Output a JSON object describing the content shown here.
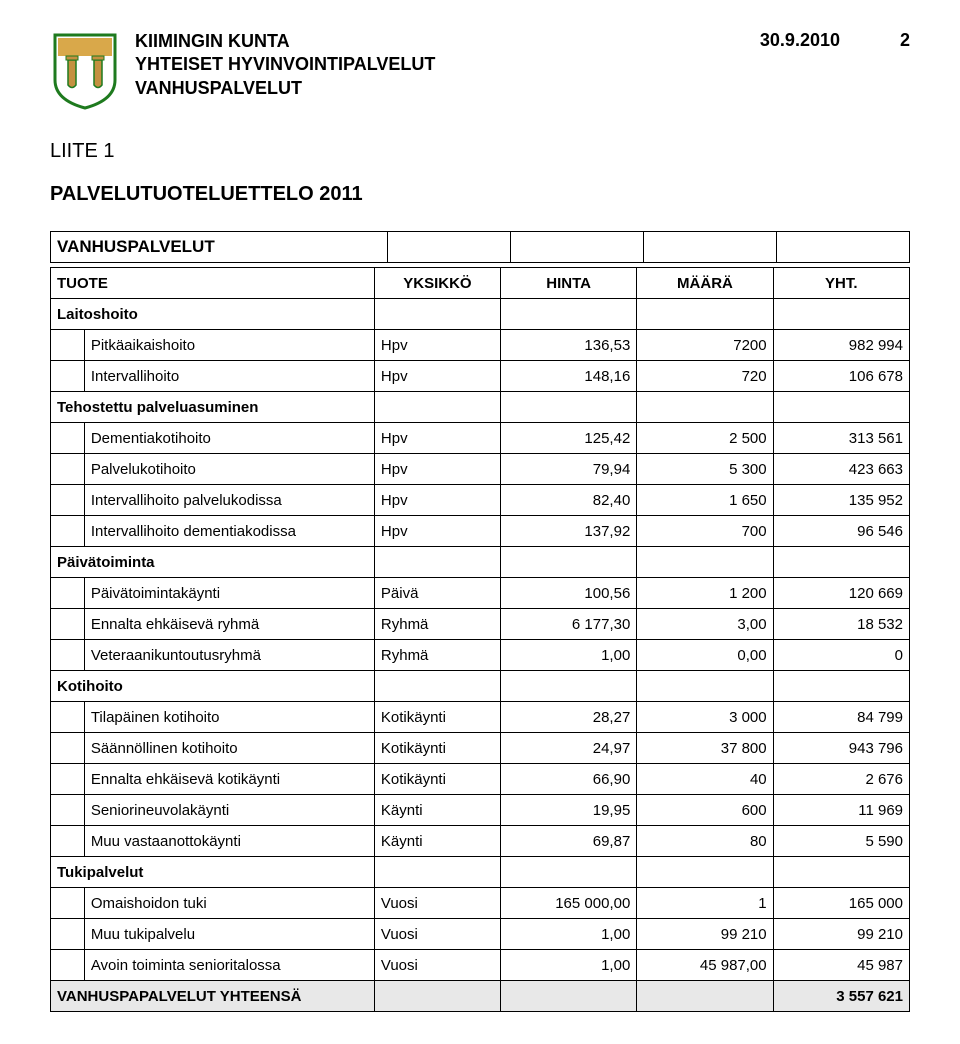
{
  "header": {
    "org_line1": "KIIMINGIN KUNTA",
    "org_line2": "YHTEISET HYVINVOINTIPALVELUT",
    "org_line3": "VANHUSPALVELUT",
    "date": "30.9.2010",
    "page": "2"
  },
  "logo": {
    "shield_fill": "#ffffff",
    "shield_stroke": "#1e7a1e",
    "top_fill": "#d9a84a",
    "bell_fill": "#c49040"
  },
  "appendix": "LIITE 1",
  "title": "PALVELUTUOTELUETTELO 2011",
  "table": {
    "header": {
      "col2": "TUOTE",
      "col3": "YKSIKKÖ",
      "col4": "HINTA",
      "col5": "MÄÄRÄ",
      "col6": "YHT."
    },
    "section_title": "VANHUSPALVELUT",
    "groups": [
      {
        "label": "Laitoshoito",
        "rows": [
          {
            "name": "Pitkäaikaishoito",
            "unit": "Hpv",
            "price": "136,53",
            "qty": "7200",
            "total": "982 994"
          },
          {
            "name": "Intervallihoito",
            "unit": "Hpv",
            "price": "148,16",
            "qty": "720",
            "total": "106 678"
          }
        ]
      },
      {
        "label": "Tehostettu palveluasuminen",
        "rows": [
          {
            "name": "Dementiakotihoito",
            "unit": "Hpv",
            "price": "125,42",
            "qty": "2 500",
            "total": "313 561"
          },
          {
            "name": "Palvelukotihoito",
            "unit": "Hpv",
            "price": "79,94",
            "qty": "5 300",
            "total": "423 663"
          },
          {
            "name": "Intervallihoito palvelukodissa",
            "unit": "Hpv",
            "price": "82,40",
            "qty": "1 650",
            "total": "135 952"
          },
          {
            "name": "Intervallihoito dementiakodissa",
            "unit": "Hpv",
            "price": "137,92",
            "qty": "700",
            "total": "96 546"
          }
        ]
      },
      {
        "label": "Päivätoiminta",
        "rows": [
          {
            "name": "Päivätoimintakäynti",
            "unit": "Päivä",
            "price": "100,56",
            "qty": "1 200",
            "total": "120 669"
          },
          {
            "name": "Ennalta ehkäisevä ryhmä",
            "unit": "Ryhmä",
            "price": "6 177,30",
            "qty": "3,00",
            "total": "18 532"
          },
          {
            "name": "Veteraanikuntoutusryhmä",
            "unit": "Ryhmä",
            "price": "1,00",
            "qty": "0,00",
            "total": "0"
          }
        ]
      },
      {
        "label": "Kotihoito",
        "rows": [
          {
            "name": "Tilapäinen kotihoito",
            "unit": "Kotikäynti",
            "price": "28,27",
            "qty": "3 000",
            "total": "84 799"
          },
          {
            "name": "Säännöllinen kotihoito",
            "unit": "Kotikäynti",
            "price": "24,97",
            "qty": "37 800",
            "total": "943 796"
          },
          {
            "name": "Ennalta ehkäisevä kotikäynti",
            "unit": "Kotikäynti",
            "price": "66,90",
            "qty": "40",
            "total": "2 676"
          },
          {
            "name": "Seniorineuvolakäynti",
            "unit": "Käynti",
            "price": "19,95",
            "qty": "600",
            "total": "11 969"
          },
          {
            "name": "Muu vastaanottokäynti",
            "unit": "Käynti",
            "price": "69,87",
            "qty": "80",
            "total": "5 590"
          }
        ]
      },
      {
        "label": "Tukipalvelut",
        "rows": [
          {
            "name": "Omaishoidon tuki",
            "unit": "Vuosi",
            "price": "165 000,00",
            "qty": "1",
            "total": "165 000"
          },
          {
            "name": "Muu tukipalvelu",
            "unit": "Vuosi",
            "price": "1,00",
            "qty": "99 210",
            "total": "99 210"
          },
          {
            "name": "Avoin toiminta senioritalossa",
            "unit": "Vuosi",
            "price": "1,00",
            "qty": "45 987,00",
            "total": "45 987"
          }
        ]
      }
    ],
    "total": {
      "label": "VANHUSPAPALVELUT YHTEENSÄ",
      "value": "3 557 621"
    }
  },
  "styles": {
    "body_font_size": 15,
    "header_font_size": 18,
    "title_font_size": 20,
    "border_color": "#000000",
    "total_row_bg": "#e8e8e8"
  }
}
